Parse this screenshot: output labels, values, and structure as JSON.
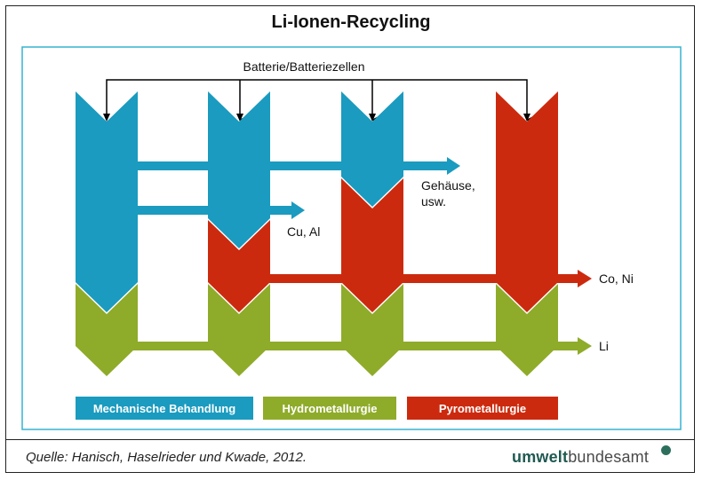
{
  "title": "Li-Ionen-Recycling",
  "diagram": {
    "input_label": "Batterie/Batteriezellen",
    "outputs": {
      "gehaeuse_line1": "Gehäuse,",
      "gehaeuse_line2": "usw.",
      "cu_al": "Cu, Al",
      "co_ni": "Co, Ni",
      "li": "Li"
    },
    "legend": {
      "mechanical": "Mechanische Behandlung",
      "hydro": "Hydrometallurgie",
      "pyro": "Pyrometallurgie"
    },
    "colors": {
      "mechanical": "#1a9bbf",
      "hydro": "#8fab2a",
      "pyro": "#cc2a0e",
      "border": "#35b3d1"
    }
  },
  "footer": {
    "source": "Quelle:  Hanisch, Haselrieder und Kwade, 2012.",
    "logo_bold": "umwelt",
    "logo_light": "bundesamt"
  }
}
